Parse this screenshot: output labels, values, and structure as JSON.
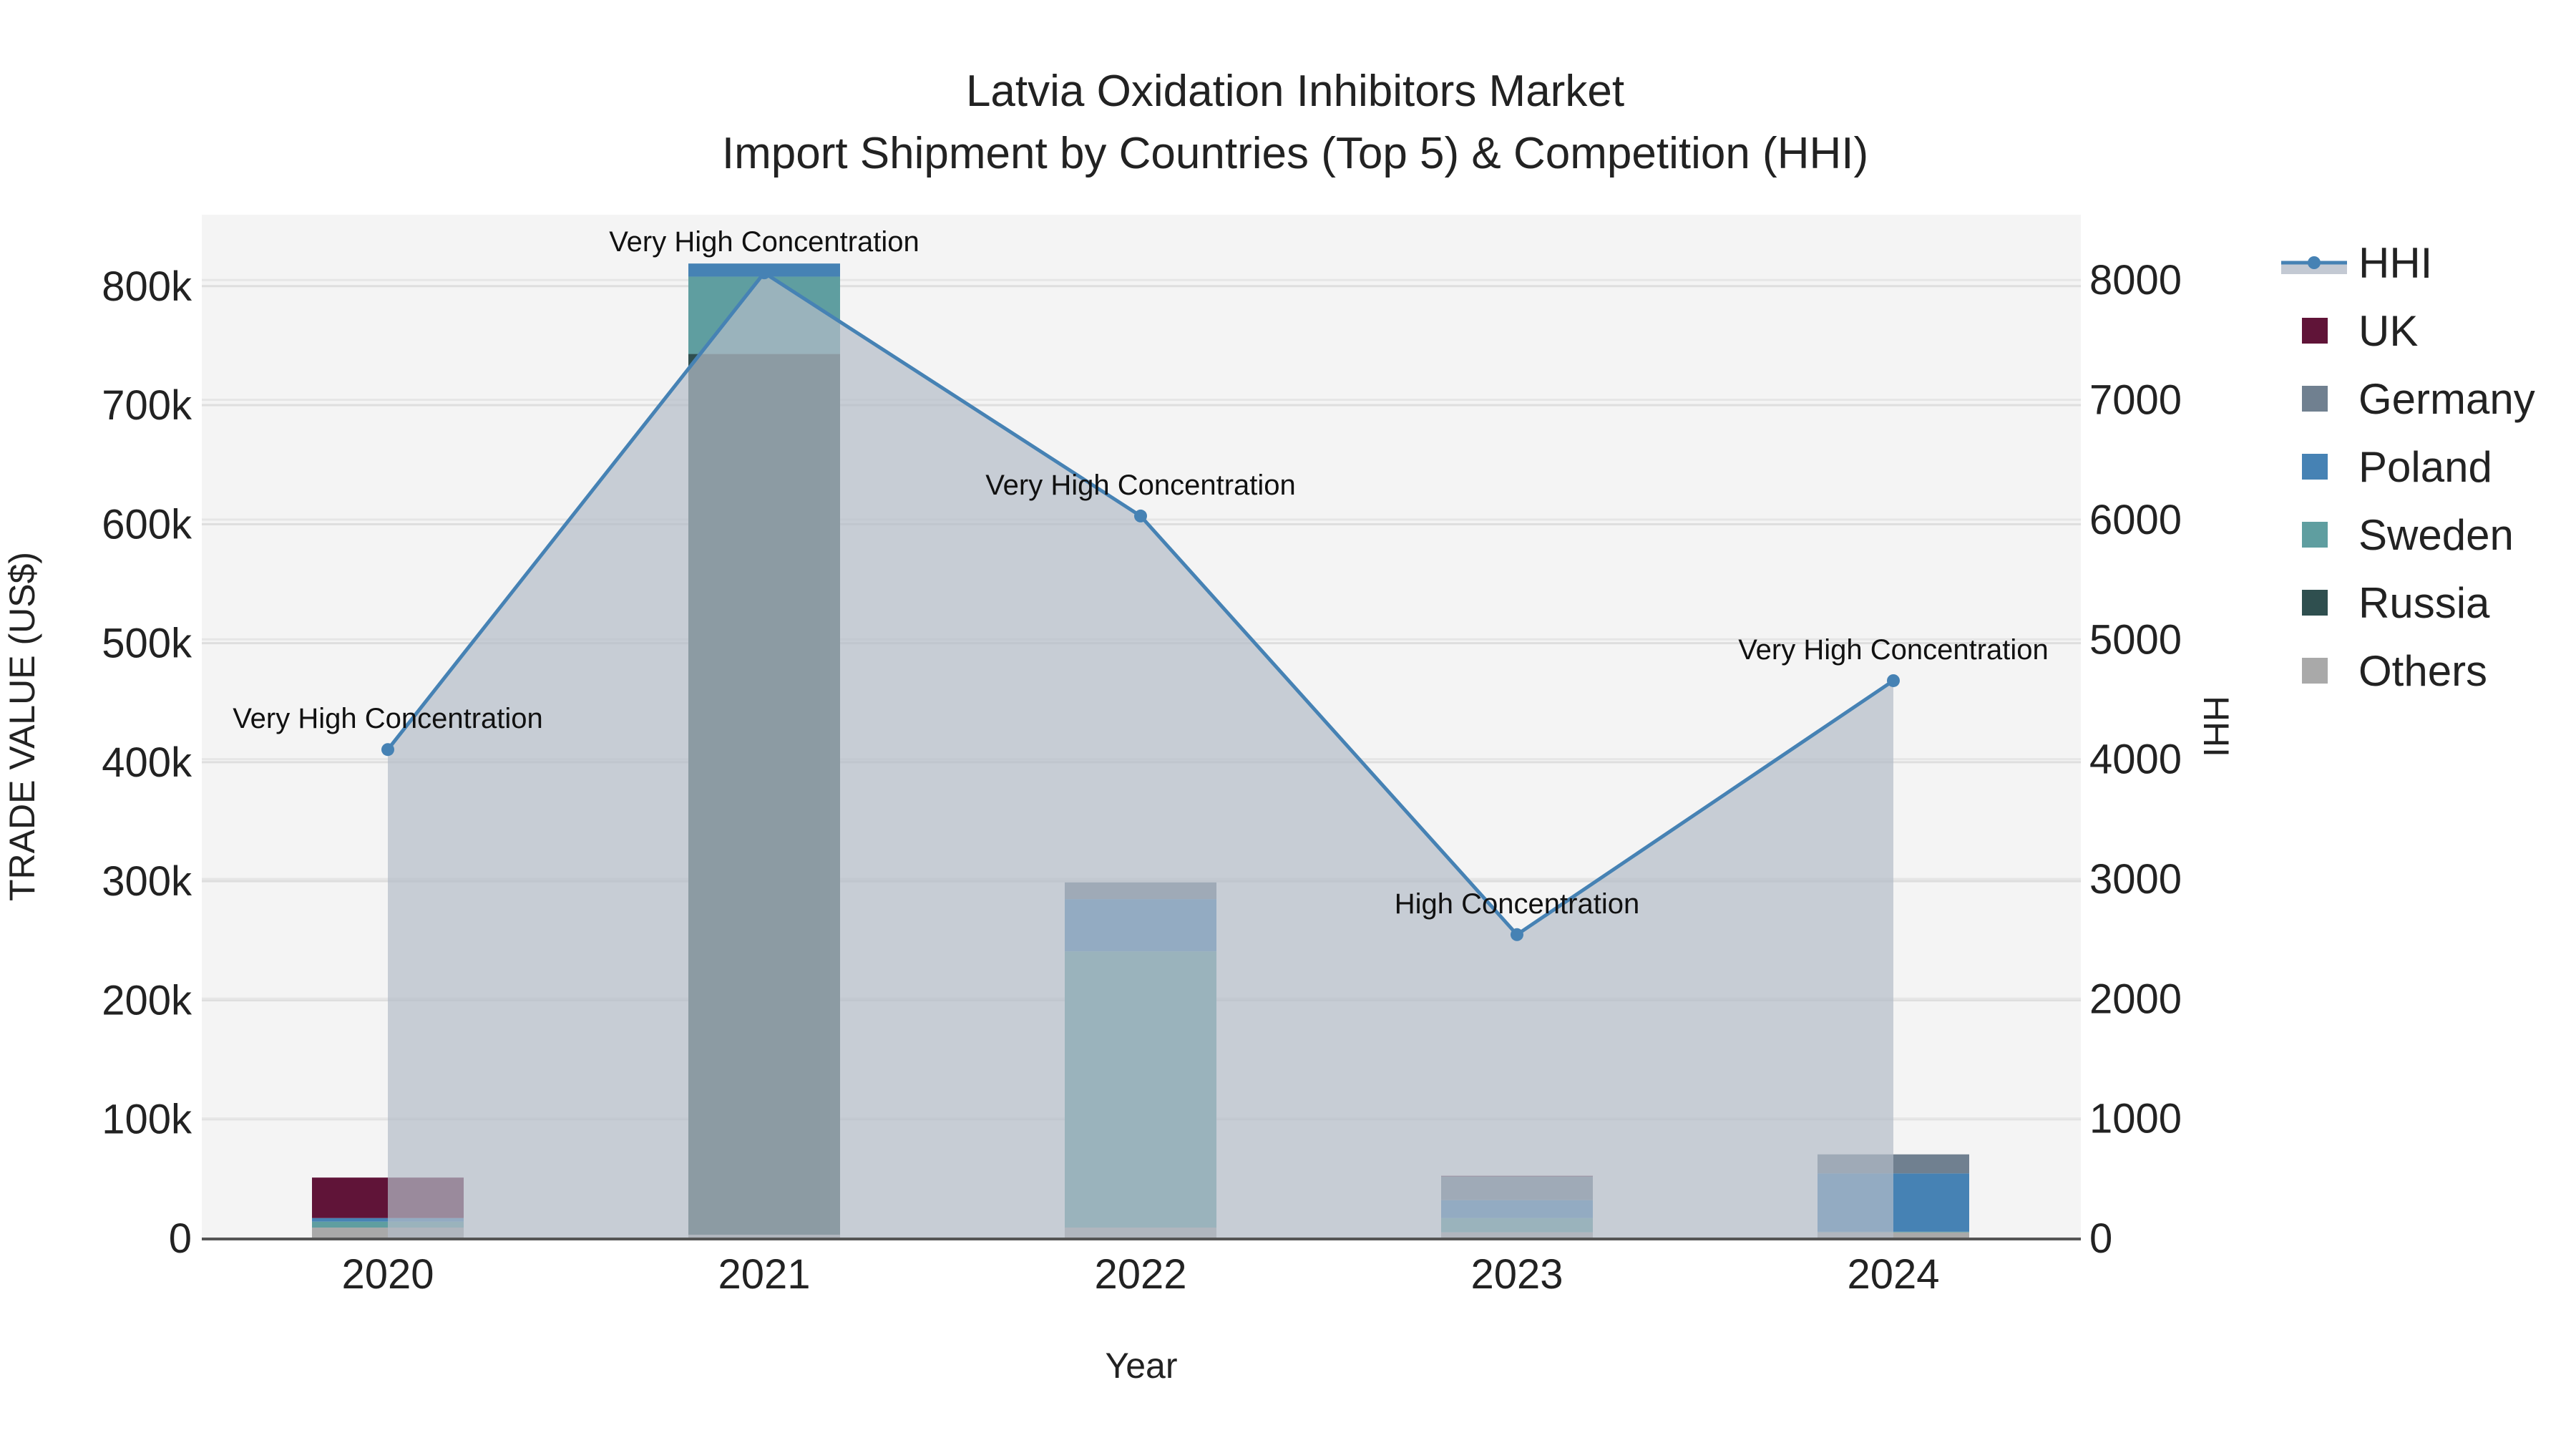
{
  "chart_data": {
    "type": "bar",
    "title_line1": "Latvia Oxidation Inhibitors Market",
    "title_line2": "Import Shipment by Countries (Top 5) & Competition (HHI)",
    "xlabel": "Year",
    "ylabel": "TRADE VALUE (US$)",
    "y2label": "HHI",
    "categories": [
      "2020",
      "2021",
      "2022",
      "2023",
      "2024"
    ],
    "ylim": [
      0,
      860000
    ],
    "y2lim": [
      0,
      8545
    ],
    "yticks": [
      0,
      100000,
      200000,
      300000,
      400000,
      500000,
      600000,
      700000,
      800000
    ],
    "ytick_labels": [
      "0",
      "100k",
      "200k",
      "300k",
      "400k",
      "500k",
      "600k",
      "700k",
      "800k"
    ],
    "y2ticks": [
      0,
      1000,
      2000,
      3000,
      4000,
      5000,
      6000,
      7000,
      8000
    ],
    "y2tick_labels": [
      "0",
      "1000",
      "2000",
      "3000",
      "4000",
      "5000",
      "6000",
      "7000",
      "8000"
    ],
    "grid": true,
    "legend_position": "right",
    "series": [
      {
        "name": "Others",
        "color": "#A9A9A9",
        "values": [
          9000,
          3000,
          9000,
          5000,
          5000
        ]
      },
      {
        "name": "Russia",
        "color": "#2F4F4F",
        "values": [
          0,
          740000,
          0,
          0,
          0
        ]
      },
      {
        "name": "Sweden",
        "color": "#5F9EA0",
        "values": [
          5000,
          65000,
          232000,
          12000,
          500
        ]
      },
      {
        "name": "Poland",
        "color": "#4682B4",
        "values": [
          3000,
          11000,
          44000,
          15000,
          49000
        ]
      },
      {
        "name": "Germany",
        "color": "#708090",
        "values": [
          0,
          0,
          14000,
          20000,
          16000
        ]
      },
      {
        "name": "UK",
        "color": "#601438",
        "values": [
          34000,
          0,
          0,
          500,
          0
        ]
      }
    ],
    "legend_order": [
      "HHI",
      "UK",
      "Germany",
      "Poland",
      "Sweden",
      "Russia",
      "Others"
    ],
    "hhi": {
      "name": "HHI",
      "color": "#4682B4",
      "values": [
        4080,
        8060,
        6030,
        2535,
        4655
      ],
      "annotations": [
        "Very High Concentration",
        "Very High Concentration",
        "Very High Concentration",
        "High Concentration",
        "Very High Concentration"
      ]
    }
  }
}
